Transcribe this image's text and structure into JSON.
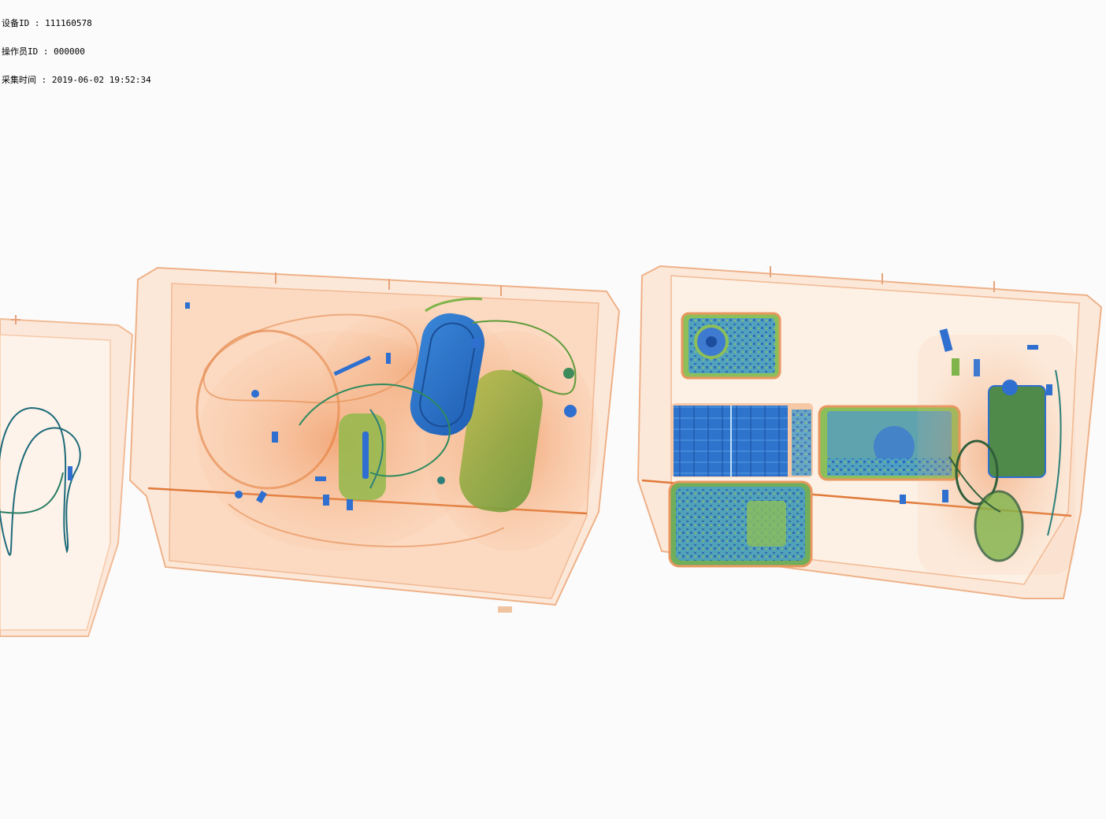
{
  "overlay": {
    "device_id": {
      "label": "设备ID",
      "sep": " : ",
      "value": "111160578"
    },
    "operator_id": {
      "label": "操作员ID",
      "sep": " : ",
      "value": "000000"
    },
    "capture_time": {
      "label": "采集时间",
      "sep": " : ",
      "value": "2019-06-02 19:52:34"
    }
  },
  "scan": {
    "tray_count": 3,
    "colors": {
      "organic": "#e9803f",
      "organic_light": "#f7c8a6",
      "mixed": "#7fb44a",
      "inorganic": "#2f6fd0",
      "background": "#fbfbfb"
    }
  }
}
